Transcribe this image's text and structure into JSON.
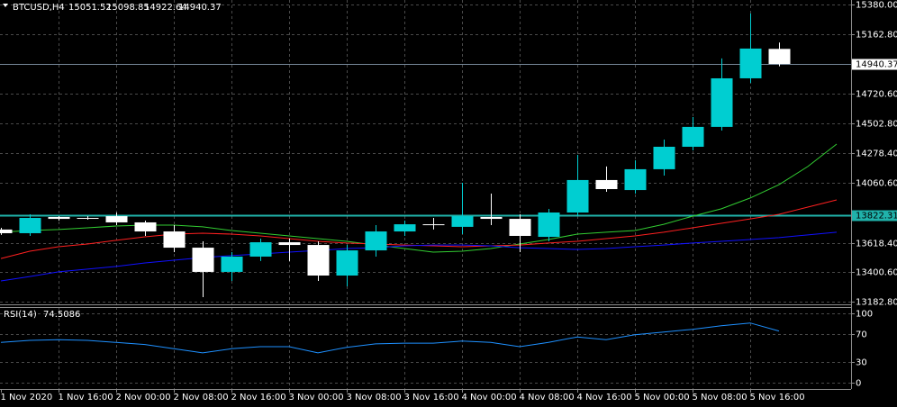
{
  "chart_data": {
    "type": "candlestick",
    "symbol": "BTCUSD,H4",
    "categories": [
      "1 Nov 2020",
      null,
      "1 Nov 16:00",
      null,
      "2 Nov 00:00",
      null,
      "2 Nov 08:00",
      null,
      "2 Nov 16:00",
      null,
      "3 Nov 00:00",
      null,
      "3 Nov 08:00",
      null,
      "3 Nov 16:00",
      null,
      "4 Nov 00:00",
      null,
      "4 Nov 08:00",
      null,
      "4 Nov 16:00",
      null,
      "5 Nov 00:00",
      null,
      "5 Nov 08:00",
      null,
      "5 Nov 16:00",
      null,
      null,
      null
    ],
    "open": [
      13716,
      13689,
      13809,
      13802,
      13815,
      13769,
      13702,
      13582,
      13403,
      13516,
      13622,
      13602,
      13376,
      13562,
      13702,
      13755,
      13736,
      13809,
      13795,
      13662,
      13842,
      14082,
      14008,
      14162,
      14328,
      14475,
      14834,
      15051.52,
      null,
      null
    ],
    "high": [
      13729,
      13829,
      13815,
      13815,
      13842,
      13782,
      13749,
      13629,
      13549,
      13649,
      13649,
      13629,
      13602,
      13749,
      13782,
      13802,
      14062,
      13982,
      13829,
      13869,
      14268,
      14182,
      14228,
      14381,
      14548,
      14981,
      15313,
      15098.85,
      null,
      null
    ],
    "low": [
      13676,
      13669,
      13782,
      13789,
      13749,
      13669,
      13549,
      13216,
      13336,
      13483,
      13483,
      13336,
      13296,
      13516,
      13669,
      13716,
      13682,
      13749,
      13549,
      13629,
      13815,
      13995,
      13982,
      14115,
      14301,
      14448,
      14800,
      14922.64,
      null,
      null
    ],
    "close": [
      13689,
      13802,
      13795,
      13799,
      13769,
      13702,
      13582,
      13403,
      13516,
      13622,
      13602,
      13376,
      13562,
      13702,
      13755,
      13749,
      13815,
      13795,
      13669,
      13842,
      14082,
      14015,
      14162,
      14328,
      14475,
      14834,
      15054,
      14940.37,
      null,
      null
    ],
    "up_color": "#00ced1",
    "down_color": "#ffffff",
    "series": [
      {
        "color": "#32cd32",
        "values": [
          13696,
          13709,
          13716,
          13729,
          13742,
          13749,
          13749,
          13736,
          13709,
          13689,
          13669,
          13649,
          13629,
          13602,
          13576,
          13549,
          13556,
          13576,
          13609,
          13642,
          13682,
          13696,
          13709,
          13755,
          13815,
          13869,
          13949,
          14048,
          14182,
          14348
        ]
      },
      {
        "color": "#ff2020",
        "values": [
          13502,
          13556,
          13589,
          13609,
          13636,
          13662,
          13682,
          13689,
          13682,
          13669,
          13649,
          13629,
          13616,
          13609,
          13602,
          13596,
          13589,
          13596,
          13602,
          13616,
          13629,
          13649,
          13669,
          13696,
          13729,
          13762,
          13795,
          13829,
          13882,
          13935
        ]
      },
      {
        "color": "#1010ff",
        "values": [
          13336,
          13369,
          13403,
          13423,
          13443,
          13469,
          13489,
          13509,
          13523,
          13536,
          13549,
          13562,
          13576,
          13582,
          13596,
          13602,
          13602,
          13596,
          13582,
          13576,
          13569,
          13576,
          13589,
          13602,
          13616,
          13629,
          13642,
          13656,
          13676,
          13696
        ]
      }
    ],
    "ylim": [
      13163,
      15413
    ],
    "yticks": [
      {
        "value": 15380,
        "label": "15380.00"
      },
      {
        "value": 15162.8,
        "label": "15162.80"
      },
      {
        "value": 14720.6,
        "label": "14720.60"
      },
      {
        "value": 14502.8,
        "label": "14502.80"
      },
      {
        "value": 14278.4,
        "label": "14278.40"
      },
      {
        "value": 14060.6,
        "label": "14060.60"
      },
      {
        "value": 13618.4,
        "label": "13618.40"
      },
      {
        "value": 13400.6,
        "label": "13400.60"
      },
      {
        "value": 13182.8,
        "label": "13182.80"
      }
    ],
    "hline": {
      "value": 13822.31,
      "color": "#20b2aa"
    },
    "grid": true,
    "rsi": {
      "label": "RSI(14)",
      "color": "#1e90ff",
      "values": [
        58,
        61,
        62,
        61,
        58,
        55,
        49,
        43,
        49,
        52,
        52,
        43,
        51,
        56,
        57,
        57,
        60,
        58,
        52,
        58,
        66,
        62,
        69,
        73,
        77,
        82,
        86,
        74.5086,
        null,
        null
      ],
      "ylim": [
        -9,
        109
      ],
      "yticks": [
        100,
        70,
        30,
        0
      ]
    }
  }
}
